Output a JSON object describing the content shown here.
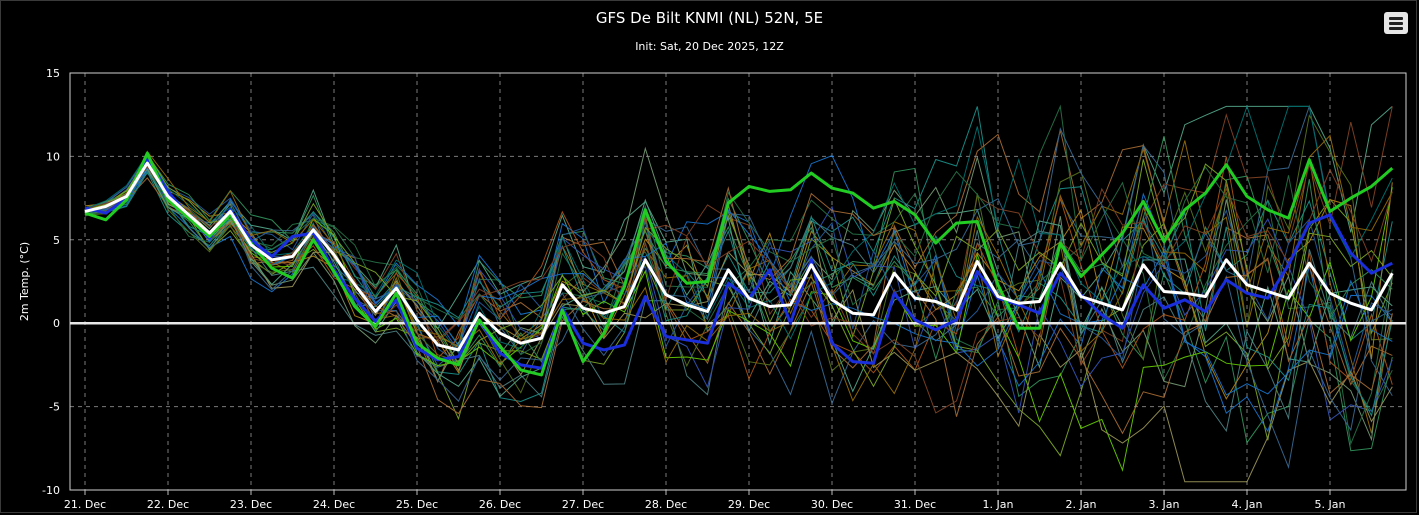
{
  "chart_data": {
    "type": "line",
    "title": "GFS De Bilt KNMI (NL) 52N, 5E",
    "subtitle": "Init: Sat, 20 Dec 2025, 12Z",
    "ylabel": "2m Temp. (°C)",
    "ylim": [
      -10,
      15
    ],
    "yticks": [
      -10,
      -5,
      0,
      5,
      10,
      15
    ],
    "xticks": [
      "21. Dec",
      "22. Dec",
      "23. Dec",
      "24. Dec",
      "25. Dec",
      "26. Dec",
      "27. Dec",
      "28. Dec",
      "29. Dec",
      "30. Dec",
      "31. Dec",
      "1. Jan",
      "2. Jan",
      "3. Jan",
      "4. Jan",
      "5. Jan"
    ],
    "x_step_hours": 6,
    "x_start": "20 Dec 2025 18Z",
    "grid": true,
    "series": [
      {
        "role": "mean",
        "color": "#ffffff",
        "values": [
          6.7,
          7.0,
          7.6,
          9.6,
          7.6,
          6.5,
          5.4,
          6.7,
          4.7,
          3.8,
          4.0,
          5.6,
          4.1,
          2.3,
          0.7,
          2.1,
          0.2,
          -1.3,
          -1.6,
          0.6,
          -0.6,
          -1.2,
          -0.9,
          2.3,
          0.9,
          0.6,
          1.0,
          3.8,
          1.7,
          1.1,
          0.7,
          3.2,
          1.5,
          1.0,
          1.1,
          3.5,
          1.4,
          0.6,
          0.5,
          3.0,
          1.5,
          1.3,
          0.8,
          3.7,
          1.6,
          1.2,
          1.3,
          3.6,
          1.6,
          1.2,
          0.8,
          3.5,
          1.9,
          1.8,
          1.6,
          3.8,
          2.3,
          1.9,
          1.5,
          3.6,
          1.8,
          1.2,
          0.8,
          3.0
        ]
      },
      {
        "role": "control",
        "color": "#22cc22",
        "values": [
          6.6,
          6.2,
          7.4,
          10.2,
          7.4,
          6.3,
          5.2,
          6.5,
          4.8,
          3.3,
          2.7,
          5.0,
          3.1,
          1.0,
          -0.2,
          1.8,
          -1.2,
          -2.1,
          -2.5,
          0.2,
          -1.4,
          -2.8,
          -3.1,
          0.8,
          -2.3,
          -0.6,
          2.2,
          6.8,
          3.7,
          2.4,
          2.5,
          7.2,
          8.2,
          7.9,
          8.0,
          9.0,
          8.1,
          7.8,
          6.9,
          7.3,
          6.5,
          4.8,
          6.0,
          6.1,
          2.3,
          -0.3,
          -0.3,
          4.8,
          2.8,
          4.1,
          5.4,
          7.3,
          4.9,
          6.8,
          7.8,
          9.5,
          7.6,
          6.8,
          6.3,
          9.8,
          6.7,
          7.5,
          8.2,
          9.3
        ]
      },
      {
        "role": "operational",
        "color": "#1a2edb",
        "values": [
          6.9,
          6.6,
          7.5,
          9.8,
          7.9,
          6.4,
          5.1,
          6.8,
          5.0,
          4.0,
          5.2,
          5.4,
          3.2,
          1.5,
          0.1,
          1.4,
          -1.5,
          -2.2,
          -2.0,
          0.2,
          -1.8,
          -2.5,
          -2.7,
          0.9,
          -1.2,
          -1.6,
          -1.3,
          1.6,
          -0.8,
          -1.0,
          -1.2,
          2.4,
          1.5,
          3.2,
          0.0,
          3.8,
          -1.2,
          -2.3,
          -2.4,
          1.8,
          0.2,
          -0.4,
          0.2,
          3.1,
          1.5,
          1.1,
          0.6,
          3.0,
          1.7,
          0.5,
          -0.3,
          2.3,
          0.9,
          1.4,
          0.7,
          2.6,
          1.8,
          1.5,
          3.5,
          6.0,
          6.5,
          4.2,
          3.0,
          3.6
        ]
      }
    ]
  }
}
